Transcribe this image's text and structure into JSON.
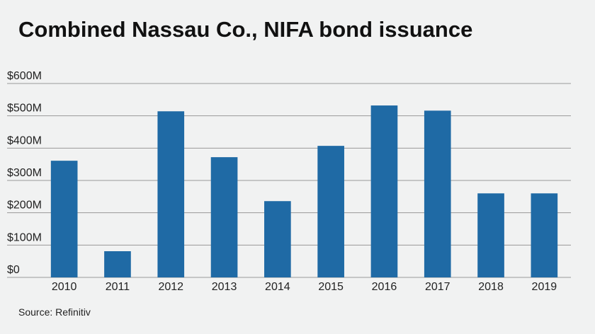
{
  "chart_data": {
    "type": "bar",
    "title": "Combined Nassau Co., NIFA bond issuance",
    "source": "Source: Refinitiv",
    "categories": [
      "2010",
      "2011",
      "2012",
      "2013",
      "2014",
      "2015",
      "2016",
      "2017",
      "2018",
      "2019"
    ],
    "values": [
      361,
      81,
      514,
      372,
      236,
      407,
      532,
      516,
      260,
      260
    ],
    "color": "#1f6aa5",
    "ylim": [
      0,
      600
    ],
    "yticks": [
      {
        "value": 0,
        "label": "$0"
      },
      {
        "value": 100,
        "label": "$100M"
      },
      {
        "value": 200,
        "label": "$200M"
      },
      {
        "value": 300,
        "label": "$300M"
      },
      {
        "value": 400,
        "label": "$400M"
      },
      {
        "value": 500,
        "label": "$500M"
      },
      {
        "value": 600,
        "label": "$600M"
      }
    ],
    "grid": true
  }
}
